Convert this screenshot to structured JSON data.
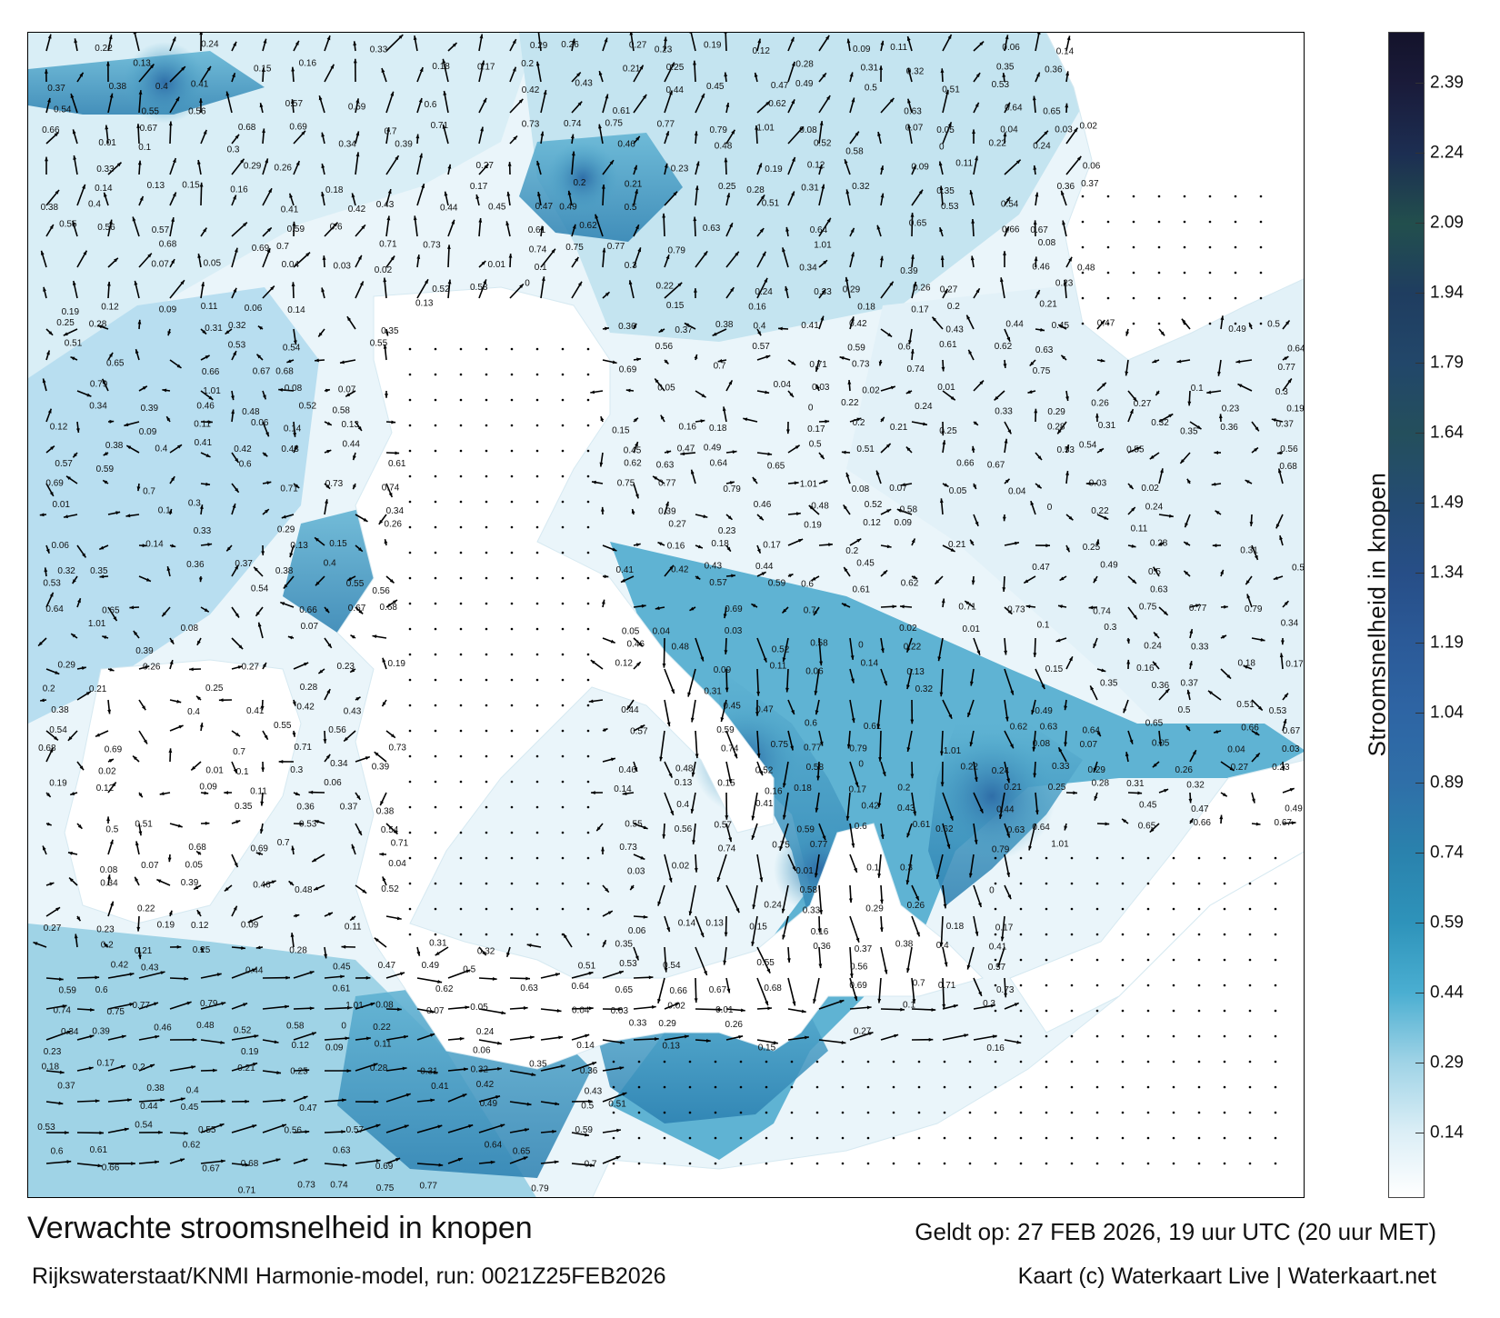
{
  "map": {
    "title": "Verwachte stroomsnelheid in knopen",
    "subtitle": "Rijkswaterstaat/KNMI Harmonie-model, run: 0021Z25FEB2026",
    "valid_time": "Geldt op: 27 FEB 2026, 19 uur UTC (20 uur MET)",
    "credit": "Kaart (c) Waterkaart Live | Waterkaart.net",
    "land_color": "#ffffff",
    "water_low_color": "#eef6fb",
    "water_mid_color": "#4aa6c8",
    "water_high_color": "#1f6fa8",
    "arrow_color": "#000000"
  },
  "colorbar": {
    "title": "Stroomsnelheid in knopen",
    "ticks": [
      "2.39",
      "2.24",
      "2.09",
      "1.94",
      "1.79",
      "1.64",
      "1.49",
      "1.34",
      "1.19",
      "1.04",
      "0.89",
      "0.74",
      "0.59",
      "0.44",
      "0.29",
      "0.14"
    ],
    "stops": [
      {
        "value": 0.0,
        "color": "#ffffff"
      },
      {
        "value": 0.14,
        "color": "#dbeef6"
      },
      {
        "value": 0.29,
        "color": "#9fd3e6"
      },
      {
        "value": 0.44,
        "color": "#4aaed1"
      },
      {
        "value": 0.59,
        "color": "#2e93ba"
      },
      {
        "value": 0.74,
        "color": "#2a82ad"
      },
      {
        "value": 0.89,
        "color": "#2f6fa8"
      },
      {
        "value": 1.04,
        "color": "#2e65a4"
      },
      {
        "value": 1.19,
        "color": "#2b5a98"
      },
      {
        "value": 1.34,
        "color": "#274e87"
      },
      {
        "value": 1.49,
        "color": "#244c73"
      },
      {
        "value": 1.64,
        "color": "#244f5c"
      },
      {
        "value": 1.79,
        "color": "#22476a"
      },
      {
        "value": 1.94,
        "color": "#1f3d60"
      },
      {
        "value": 2.09,
        "color": "#224f4d"
      },
      {
        "value": 2.24,
        "color": "#1c2e52"
      },
      {
        "value": 2.39,
        "color": "#1a1b3a"
      },
      {
        "value": 2.5,
        "color": "#14132b"
      }
    ]
  },
  "speed_labels": [
    "0.22",
    "0.24",
    "0.33",
    "0.29",
    "0.26",
    "0.27",
    "0.23",
    "0.19",
    "0.12",
    "0.09",
    "0.11",
    "0.06",
    "0.14",
    "0.13",
    "0.15",
    "0.16",
    "0.18",
    "0.17",
    "0.2",
    "0.21",
    "0.25",
    "0.28",
    "0.31",
    "0.32",
    "0.35",
    "0.36",
    "0.37",
    "0.38",
    "0.4",
    "0.41",
    "0.42",
    "0.43",
    "0.44",
    "0.45",
    "0.47",
    "0.49",
    "0.5",
    "0.51",
    "0.53",
    "0.54",
    "0.55",
    "0.56",
    "0.57",
    "0.59",
    "0.6",
    "0.61",
    "0.62",
    "0.63",
    "0.64",
    "0.65",
    "0.66",
    "0.67",
    "0.68",
    "0.69",
    "0.7",
    "0.71",
    "0.73",
    "0.74",
    "0.75",
    "0.77",
    "0.79",
    "1.01",
    "0.08",
    "0.07",
    "0.05",
    "0.04",
    "0.03",
    "0.02",
    "0.01",
    "0.1",
    "0.3",
    "0.34",
    "0.39",
    "0.46",
    "0.48",
    "0.52",
    "0.58",
    "0"
  ]
}
